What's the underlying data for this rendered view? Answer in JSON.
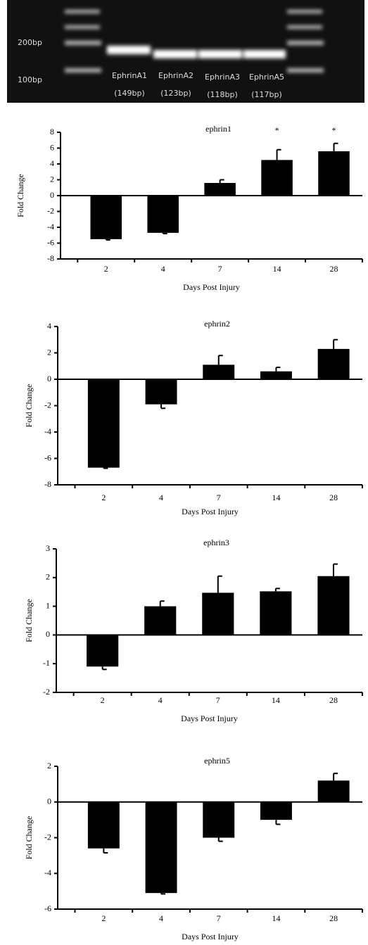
{
  "gel": {
    "markers": [
      "200bp",
      "100bp"
    ],
    "lanes": [
      {
        "label": "EphrinA1",
        "size": "(149bp)"
      },
      {
        "label": "EphrinA2",
        "size": "(123bp)"
      },
      {
        "label": "EphrinA3",
        "size": "(118bp)"
      },
      {
        "label": "EphrinA5",
        "size": "(117bp)"
      }
    ]
  },
  "chart_data": [
    {
      "type": "bar",
      "title": "ephrin1",
      "x_label": "Days Post Injury",
      "y_label": "Fold Change",
      "categories": [
        "2",
        "4",
        "7",
        "14",
        "28"
      ],
      "values": [
        -5.5,
        -4.7,
        1.6,
        4.5,
        5.6
      ],
      "errors": [
        0.1,
        0.1,
        0.4,
        1.3,
        1.0
      ],
      "value_annotations": [
        null,
        null,
        null,
        "*",
        "*"
      ],
      "color": "#000000",
      "ylim": [
        -8,
        8
      ],
      "yticks": [
        -8,
        -6,
        -4,
        -2,
        0,
        2,
        4,
        6,
        8
      ]
    },
    {
      "type": "bar",
      "title": "ephrin2",
      "x_label": "Days Post Injury",
      "y_label": "Fold Change",
      "categories": [
        "2",
        "4",
        "7",
        "14",
        "28"
      ],
      "values": [
        -6.7,
        -1.9,
        1.1,
        0.6,
        2.3
      ],
      "errors": [
        0.05,
        0.3,
        0.7,
        0.3,
        0.7
      ],
      "color": "#000000",
      "ylim": [
        -8,
        4
      ],
      "yticks": [
        -8,
        -6,
        -4,
        -2,
        0,
        2,
        4
      ]
    },
    {
      "type": "bar",
      "title": "ephrin3",
      "x_label": "Days Post Injury",
      "y_label": "Fold Change",
      "categories": [
        "2",
        "4",
        "7",
        "14",
        "28"
      ],
      "values": [
        -1.1,
        1.0,
        1.47,
        1.52,
        2.05
      ],
      "errors": [
        0.1,
        0.18,
        0.58,
        0.1,
        0.42
      ],
      "color": "#000000",
      "ylim": [
        -2,
        3
      ],
      "yticks": [
        -2,
        -1,
        0,
        1,
        2,
        3
      ]
    },
    {
      "type": "bar",
      "title": "ephrin5",
      "x_label": "Days Post Injury",
      "y_label": "Fold Change",
      "categories": [
        "2",
        "4",
        "7",
        "14",
        "28"
      ],
      "values": [
        -2.6,
        -5.1,
        -2.0,
        -1.0,
        1.2
      ],
      "errors": [
        0.25,
        0.05,
        0.2,
        0.25,
        0.4
      ],
      "color": "#000000",
      "ylim": [
        -6,
        2
      ],
      "yticks": [
        -6,
        -4,
        -2,
        0,
        2
      ]
    }
  ]
}
